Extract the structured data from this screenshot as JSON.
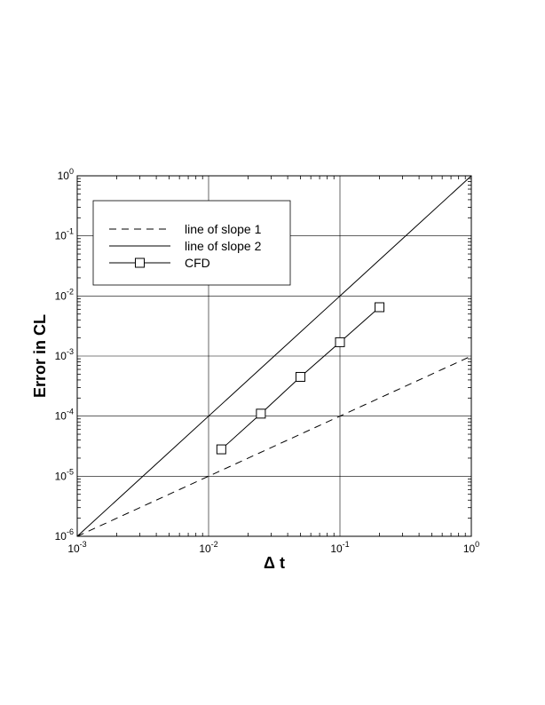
{
  "chart_data": {
    "type": "line",
    "xlabel": "Δ t",
    "ylabel": "Error in CL",
    "x_scale": "log",
    "y_scale": "log",
    "xlim": [
      0.001,
      1
    ],
    "ylim": [
      1e-06,
      1
    ],
    "x_ticks": [
      {
        "value": 0.001,
        "base": "10",
        "exp": "-3"
      },
      {
        "value": 0.01,
        "base": "10",
        "exp": "-2"
      },
      {
        "value": 0.1,
        "base": "10",
        "exp": "-1"
      },
      {
        "value": 1,
        "base": "10",
        "exp": "0"
      }
    ],
    "y_ticks": [
      {
        "value": 1e-06,
        "base": "10",
        "exp": "-6"
      },
      {
        "value": 1e-05,
        "base": "10",
        "exp": "-5"
      },
      {
        "value": 0.0001,
        "base": "10",
        "exp": "-4"
      },
      {
        "value": 0.001,
        "base": "10",
        "exp": "-3"
      },
      {
        "value": 0.01,
        "base": "10",
        "exp": "-2"
      },
      {
        "value": 0.1,
        "base": "10",
        "exp": "-1"
      },
      {
        "value": 1,
        "base": "10",
        "exp": "0"
      }
    ],
    "grid": true,
    "legend_position": "top-left",
    "series": [
      {
        "name": "line of slope 1",
        "style": "dashed",
        "marker": "none",
        "color": "#000000",
        "x": [
          0.001,
          1
        ],
        "y": [
          1e-06,
          0.001
        ]
      },
      {
        "name": "line of slope 2",
        "style": "solid",
        "marker": "none",
        "color": "#000000",
        "x": [
          0.001,
          1
        ],
        "y": [
          1e-06,
          1
        ]
      },
      {
        "name": "CFD",
        "style": "solid",
        "marker": "square",
        "color": "#000000",
        "x": [
          0.0125,
          0.025,
          0.05,
          0.1,
          0.2
        ],
        "y": [
          2.8e-05,
          0.00011,
          0.00045,
          0.0017,
          0.0065
        ]
      }
    ]
  }
}
